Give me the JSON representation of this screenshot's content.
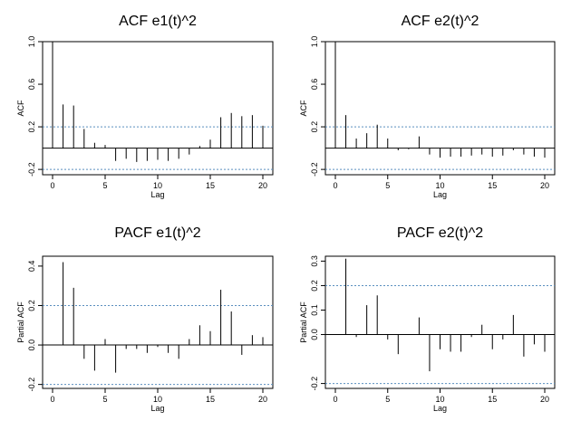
{
  "chart_data": [
    {
      "type": "bar",
      "title": "ACF e1(t)^2",
      "xlabel": "Lag",
      "ylabel": "ACF",
      "xlim": [
        0,
        20
      ],
      "ylim": [
        -0.25,
        1.0
      ],
      "xticks": [
        "0",
        "5",
        "10",
        "15",
        "20"
      ],
      "yticks": [
        {
          "value": -0.2,
          "label": "-0.2"
        },
        {
          "value": 0.2,
          "label": "0.2"
        },
        {
          "value": 0.6,
          "label": "0.6"
        },
        {
          "value": 1.0,
          "label": "1.0"
        }
      ],
      "confidence_band": 0.2,
      "lags": [
        0,
        1,
        2,
        3,
        4,
        5,
        6,
        7,
        8,
        9,
        10,
        11,
        12,
        13,
        14,
        15,
        16,
        17,
        18,
        19,
        20
      ],
      "values": [
        1.0,
        0.41,
        0.4,
        0.18,
        0.05,
        0.03,
        -0.12,
        -0.1,
        -0.13,
        -0.12,
        -0.11,
        -0.12,
        -0.1,
        -0.06,
        0.02,
        0.08,
        0.29,
        0.33,
        0.3,
        0.31,
        0.21
      ]
    },
    {
      "type": "bar",
      "title": "ACF e2(t)^2",
      "xlabel": "Lag",
      "ylabel": "ACF",
      "xlim": [
        0,
        20
      ],
      "ylim": [
        -0.25,
        1.0
      ],
      "xticks": [
        "0",
        "5",
        "10",
        "15",
        "20"
      ],
      "yticks": [
        {
          "value": -0.2,
          "label": "-0.2"
        },
        {
          "value": 0.2,
          "label": "0.2"
        },
        {
          "value": 0.6,
          "label": "0.6"
        },
        {
          "value": 1.0,
          "label": "1.0"
        }
      ],
      "confidence_band": 0.2,
      "lags": [
        0,
        1,
        2,
        3,
        4,
        5,
        6,
        7,
        8,
        9,
        10,
        11,
        12,
        13,
        14,
        15,
        16,
        17,
        18,
        19,
        20
      ],
      "values": [
        1.0,
        0.31,
        0.09,
        0.14,
        0.22,
        0.09,
        -0.02,
        -0.01,
        0.11,
        -0.06,
        -0.09,
        -0.08,
        -0.08,
        -0.07,
        -0.06,
        -0.08,
        -0.07,
        -0.02,
        -0.06,
        -0.08,
        -0.09
      ]
    },
    {
      "type": "bar",
      "title": "PACF e1(t)^2",
      "xlabel": "Lag",
      "ylabel": "Partial ACF",
      "xlim": [
        0,
        20
      ],
      "ylim": [
        -0.22,
        0.45
      ],
      "xticks": [
        "0",
        "5",
        "10",
        "15",
        "20"
      ],
      "yticks": [
        {
          "value": -0.2,
          "label": "-0.2"
        },
        {
          "value": 0.0,
          "label": "0.0"
        },
        {
          "value": 0.2,
          "label": "0.2"
        },
        {
          "value": 0.4,
          "label": "0.4"
        }
      ],
      "confidence_band": 0.2,
      "lags": [
        1,
        2,
        3,
        4,
        5,
        6,
        7,
        8,
        9,
        10,
        11,
        12,
        13,
        14,
        15,
        16,
        17,
        18,
        19,
        20
      ],
      "values": [
        0.42,
        0.29,
        -0.07,
        -0.13,
        0.03,
        -0.14,
        -0.02,
        -0.02,
        -0.04,
        -0.01,
        -0.04,
        -0.07,
        0.03,
        0.1,
        0.07,
        0.28,
        0.17,
        -0.05,
        0.05,
        0.04
      ]
    },
    {
      "type": "bar",
      "title": "PACF e2(t)^2",
      "xlabel": "Lag",
      "ylabel": "Partial ACF",
      "xlim": [
        0,
        20
      ],
      "ylim": [
        -0.22,
        0.32
      ],
      "xticks": [
        "0",
        "5",
        "10",
        "15",
        "20"
      ],
      "yticks": [
        {
          "value": -0.2,
          "label": "-0.2"
        },
        {
          "value": 0.0,
          "label": "0.0"
        },
        {
          "value": 0.1,
          "label": "0.1"
        },
        {
          "value": 0.2,
          "label": "0.2"
        },
        {
          "value": 0.3,
          "label": "0.3"
        }
      ],
      "confidence_band": 0.2,
      "lags": [
        1,
        2,
        3,
        4,
        5,
        6,
        7,
        8,
        9,
        10,
        11,
        12,
        13,
        14,
        15,
        16,
        17,
        18,
        19,
        20
      ],
      "values": [
        0.31,
        -0.01,
        0.12,
        0.16,
        -0.02,
        -0.08,
        0.0,
        0.07,
        -0.15,
        -0.06,
        -0.07,
        -0.07,
        -0.01,
        0.04,
        -0.06,
        -0.02,
        0.08,
        -0.09,
        -0.04,
        -0.07
      ]
    }
  ]
}
